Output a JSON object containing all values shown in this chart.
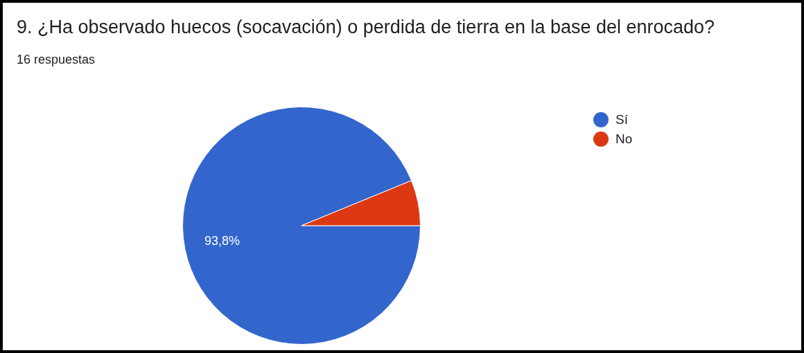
{
  "chart_data": {
    "type": "pie",
    "title": "9. ¿Ha observado huecos (socavación) o perdida de tierra en la base del enrocado?",
    "subtitle": "16 respuestas",
    "categories": [
      "Sí",
      "No"
    ],
    "values": [
      93.8,
      6.2
    ],
    "colors": [
      "#3366cc",
      "#dc3912"
    ],
    "value_labels": [
      "93,8%",
      null
    ],
    "legend": "top right"
  }
}
